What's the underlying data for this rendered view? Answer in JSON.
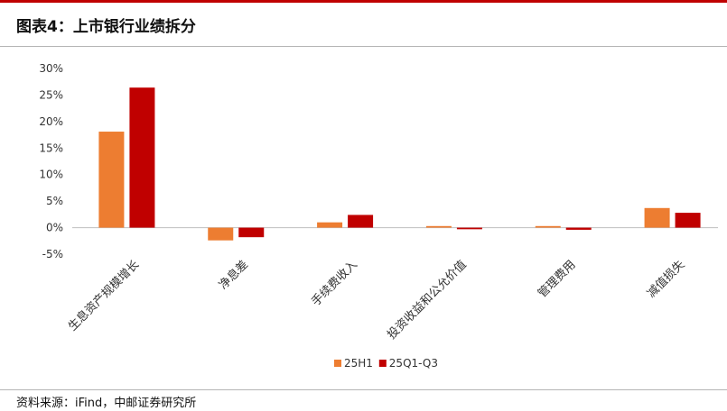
{
  "header": {
    "title": "图表4：上市银行业绩拆分"
  },
  "footer": {
    "source": "资料来源：iFind，中邮证券研究所"
  },
  "colors": {
    "series1": "#ed7d31",
    "series2": "#c00000",
    "accent_line": "#c00000"
  },
  "chart_data": {
    "type": "bar",
    "title": "",
    "xlabel": "",
    "ylabel": "",
    "categories": [
      "生息资产规模增长",
      "净息差",
      "手续费收入",
      "投资收益和公允价值",
      "管理费用",
      "减值损失"
    ],
    "series": [
      {
        "name": "25H1",
        "values": [
          18.1,
          -2.4,
          1.0,
          0.3,
          0.3,
          3.7
        ]
      },
      {
        "name": "25Q1-Q3",
        "values": [
          26.4,
          -1.8,
          2.4,
          -0.3,
          -0.4,
          2.8
        ]
      }
    ],
    "ylim": [
      -5,
      30
    ],
    "yticks": [
      -5,
      0,
      5,
      10,
      15,
      20,
      25,
      30
    ],
    "ytick_labels": [
      "-5%",
      "0%",
      "5%",
      "10%",
      "15%",
      "20%",
      "25%",
      "30%"
    ],
    "grid": false,
    "legend": "bottom"
  }
}
